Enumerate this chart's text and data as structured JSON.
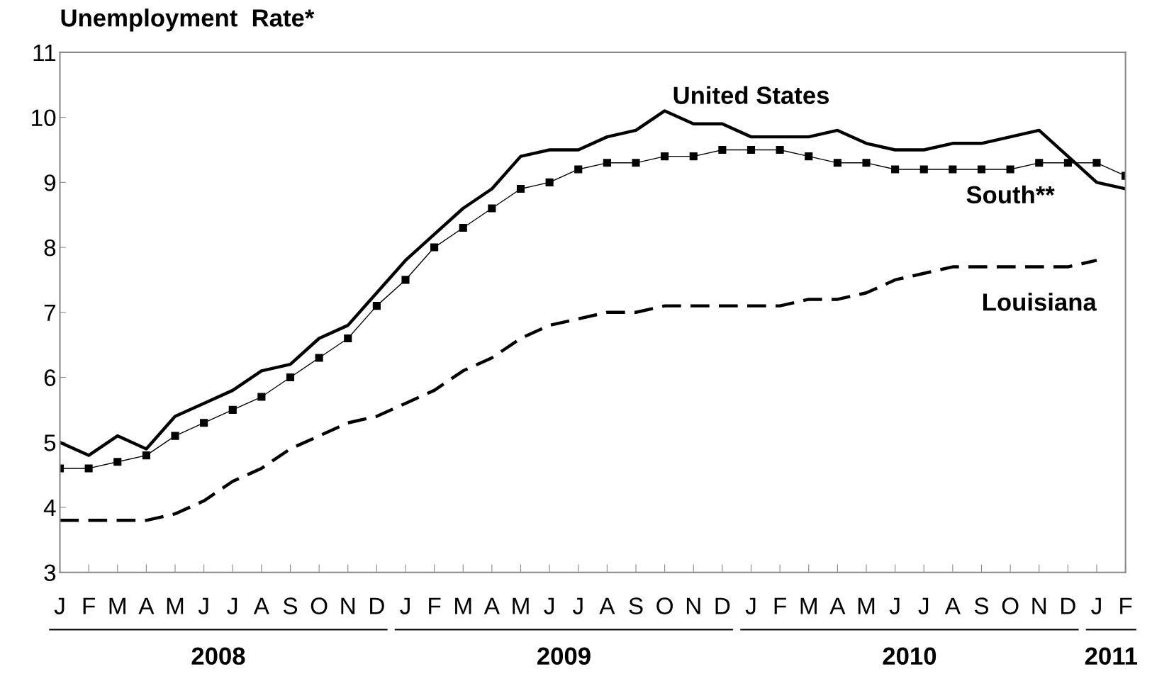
{
  "chart_data": {
    "type": "line",
    "ylabel": "Unemployment  Rate*",
    "categories": [
      "J",
      "F",
      "M",
      "A",
      "M",
      "J",
      "J",
      "A",
      "S",
      "O",
      "N",
      "D",
      "J",
      "F",
      "M",
      "A",
      "M",
      "J",
      "J",
      "A",
      "S",
      "O",
      "N",
      "D",
      "J",
      "F",
      "M",
      "A",
      "M",
      "J",
      "J",
      "A",
      "S",
      "O",
      "N",
      "D",
      "J",
      "F"
    ],
    "series": [
      {
        "name": "United States",
        "color": "#000000",
        "line_style": "solid",
        "marker": "none",
        "values": [
          5.0,
          4.8,
          5.1,
          4.9,
          5.4,
          5.6,
          5.8,
          6.1,
          6.2,
          6.6,
          6.8,
          7.3,
          7.8,
          8.2,
          8.6,
          8.9,
          9.4,
          9.5,
          9.5,
          9.7,
          9.8,
          10.1,
          9.9,
          9.9,
          9.7,
          9.7,
          9.7,
          9.8,
          9.6,
          9.5,
          9.5,
          9.6,
          9.6,
          9.7,
          9.8,
          9.4,
          9.0,
          8.9
        ]
      },
      {
        "name": "South**",
        "color": "#000000",
        "line_style": "solid",
        "marker": "square",
        "values": [
          4.6,
          4.6,
          4.7,
          4.8,
          5.1,
          5.3,
          5.5,
          5.7,
          6.0,
          6.3,
          6.6,
          7.1,
          7.5,
          8.0,
          8.3,
          8.6,
          8.9,
          9.0,
          9.2,
          9.3,
          9.3,
          9.4,
          9.4,
          9.5,
          9.5,
          9.5,
          9.4,
          9.3,
          9.3,
          9.2,
          9.2,
          9.2,
          9.2,
          9.2,
          9.3,
          9.3,
          9.3,
          9.1
        ]
      },
      {
        "name": "Louisiana",
        "color": "#000000",
        "line_style": "dashed",
        "marker": "none",
        "values": [
          3.8,
          3.8,
          3.8,
          3.8,
          3.9,
          4.1,
          4.4,
          4.6,
          4.9,
          5.1,
          5.3,
          5.4,
          5.6,
          5.8,
          6.1,
          6.3,
          6.6,
          6.8,
          6.9,
          7.0,
          7.0,
          7.1,
          7.1,
          7.1,
          7.1,
          7.1,
          7.2,
          7.2,
          7.3,
          7.5,
          7.6,
          7.7,
          7.7,
          7.7,
          7.7,
          7.7,
          7.8,
          null
        ]
      }
    ],
    "ylim": [
      3,
      11
    ],
    "yticks": [
      3,
      4,
      5,
      6,
      7,
      8,
      9,
      10,
      11
    ],
    "annotations": [
      "2008",
      "2009",
      "2010",
      "2011"
    ],
    "grid": false,
    "legend": false
  }
}
